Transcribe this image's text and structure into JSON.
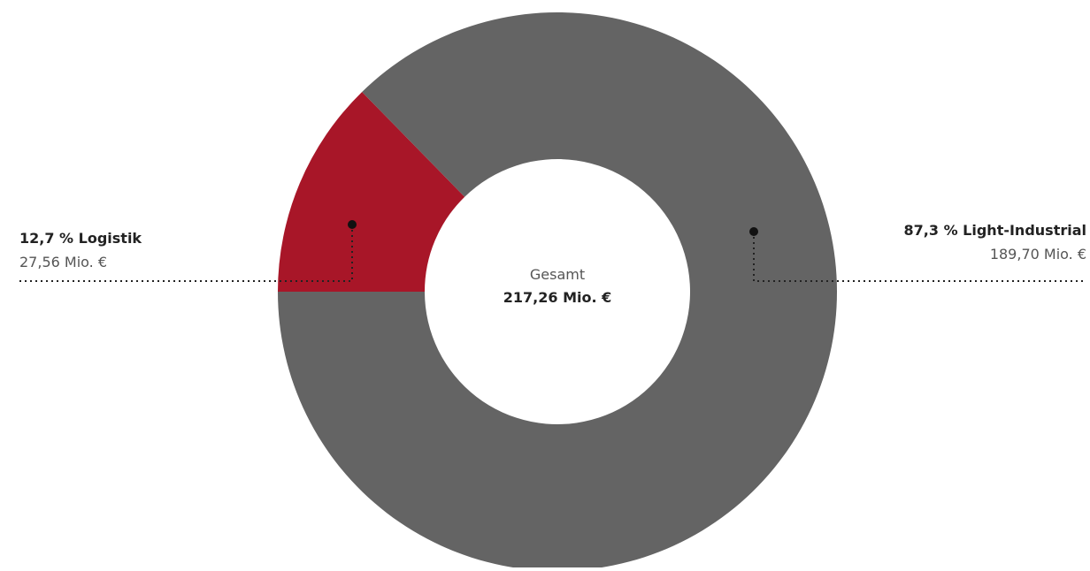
{
  "chart_data": {
    "type": "pie",
    "categories": [
      "Logistik",
      "Light-Industrial"
    ],
    "values": [
      27.56,
      189.7
    ],
    "shares_percent": [
      12.7,
      87.3
    ],
    "percent_labels": [
      "12,7 % Logistik",
      "87,3 % Light-Industrial"
    ],
    "value_labels": [
      "27,56 Mio. €",
      "189,70 Mio. €"
    ],
    "colors": [
      "#a81628",
      "#646464"
    ],
    "center_caption": "Gesamt",
    "center_total": "217,26 Mio. €"
  }
}
